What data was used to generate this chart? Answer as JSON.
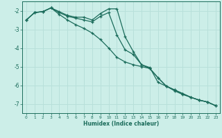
{
  "xlabel": "Humidex (Indice chaleur)",
  "bg_color": "#cceee8",
  "grid_color": "#b8e0da",
  "line_color": "#1a6b5a",
  "xlim": [
    -0.5,
    23.5
  ],
  "ylim": [
    -7.5,
    -1.5
  ],
  "yticks": [
    -7,
    -6,
    -5,
    -4,
    -3,
    -2
  ],
  "xticks": [
    0,
    1,
    2,
    3,
    4,
    5,
    6,
    7,
    8,
    9,
    10,
    11,
    12,
    13,
    14,
    15,
    16,
    17,
    18,
    19,
    20,
    21,
    22,
    23
  ],
  "line1_x": [
    0,
    1,
    2,
    3,
    4,
    5,
    6,
    7,
    8,
    9,
    10,
    11,
    12,
    13,
    14,
    15,
    16,
    17,
    18,
    19,
    20,
    21,
    22,
    23
  ],
  "line1_y": [
    -2.5,
    -2.1,
    -2.05,
    -1.85,
    -2.05,
    -2.25,
    -2.35,
    -2.35,
    -2.5,
    -2.15,
    -1.9,
    -1.9,
    -3.4,
    -4.2,
    -4.9,
    -5.05,
    -5.85,
    -6.05,
    -6.3,
    -6.5,
    -6.65,
    -6.8,
    -6.9,
    -7.1
  ],
  "line2_x": [
    0,
    1,
    2,
    3,
    4,
    5,
    6,
    7,
    8,
    9,
    10,
    11,
    12,
    13,
    14,
    15,
    16,
    17,
    18,
    19,
    20,
    21,
    22,
    23
  ],
  "line2_y": [
    -2.5,
    -2.1,
    -2.05,
    -1.85,
    -2.1,
    -2.3,
    -2.4,
    -2.5,
    -2.6,
    -2.3,
    -2.1,
    -3.3,
    -4.1,
    -4.35,
    -4.9,
    -5.1,
    -5.6,
    -6.05,
    -6.25,
    -6.45,
    -6.65,
    -6.8,
    -6.9,
    -7.1
  ],
  "line3_x": [
    0,
    1,
    2,
    3,
    4,
    5,
    6,
    7,
    8,
    9,
    10,
    11,
    12,
    13,
    14,
    15,
    16,
    17,
    18,
    19,
    20,
    21,
    22,
    23
  ],
  "line3_y": [
    -2.5,
    -2.1,
    -2.05,
    -1.85,
    -2.2,
    -2.5,
    -2.75,
    -2.95,
    -3.2,
    -3.55,
    -4.0,
    -4.5,
    -4.75,
    -4.9,
    -5.0,
    -5.1,
    -5.6,
    -6.05,
    -6.25,
    -6.45,
    -6.65,
    -6.8,
    -6.9,
    -7.1
  ]
}
